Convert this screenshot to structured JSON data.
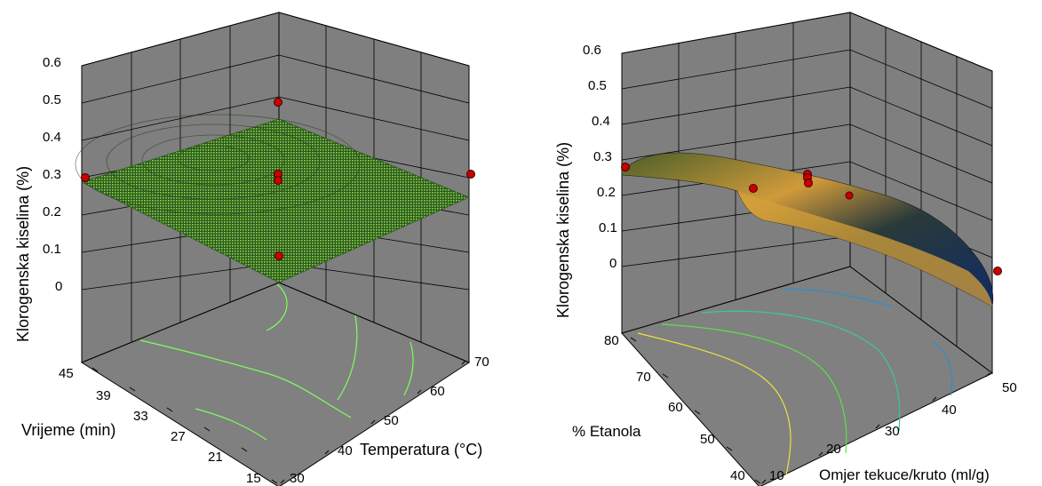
{
  "chart_data": [
    {
      "type": "surface",
      "zlabel": "Klorogenska kiselina (%)",
      "xlabel": "Temperatura (°C)",
      "ylabel": "Vrijeme (min)",
      "z_ticks": [
        "0.6",
        "0.5",
        "0.4",
        "0.3",
        "0.2",
        "0.1",
        "0"
      ],
      "x_ticks": [
        "30",
        "40",
        "50",
        "60",
        "70"
      ],
      "y_ticks": [
        "15",
        "21",
        "27",
        "33",
        "39",
        "45"
      ],
      "zlim": [
        0,
        0.6
      ],
      "xlim": [
        30,
        70
      ],
      "ylim": [
        15,
        45
      ],
      "surface_color": "#7fc341",
      "wall_color": "#7f7f7f",
      "floor_color": "#808080",
      "point_color": "#cc0000",
      "points": [
        {
          "x": 50,
          "y": 30,
          "z": 0.5
        },
        {
          "x": 50,
          "y": 30,
          "z": 0.31
        },
        {
          "x": 50,
          "y": 30,
          "z": 0.29
        },
        {
          "x": 30,
          "y": 45,
          "z": 0.28
        },
        {
          "x": 70,
          "y": 15,
          "z": 0.29
        },
        {
          "x": 50,
          "y": 30,
          "z": 0.08
        }
      ]
    },
    {
      "type": "surface",
      "zlabel": "Klorogenska kiselina (%)",
      "xlabel": "Omjer tekuce/kruto (ml/g)",
      "ylabel": "% Etanola",
      "z_ticks": [
        "0.6",
        "0.5",
        "0.4",
        "0.3",
        "0.2",
        "0.1",
        "0"
      ],
      "x_ticks": [
        "10",
        "20",
        "30",
        "40",
        "50"
      ],
      "y_ticks": [
        "40",
        "50",
        "60",
        "70",
        "80"
      ],
      "zlim": [
        0,
        0.6
      ],
      "xlim": [
        10,
        50
      ],
      "ylim": [
        40,
        80
      ],
      "surface_color_high": "#e8a33a",
      "surface_color_low": "#1d2f5c",
      "wall_color": "#7f7f7f",
      "floor_color": "#808080",
      "point_color": "#cc0000",
      "points": [
        {
          "x": 10,
          "y": 80,
          "z": 0.27
        },
        {
          "x": 30,
          "y": 60,
          "z": 0.22
        },
        {
          "x": 30,
          "y": 60,
          "z": 0.21
        },
        {
          "x": 30,
          "y": 60,
          "z": 0.2
        },
        {
          "x": 20,
          "y": 60,
          "z": 0.19
        },
        {
          "x": 50,
          "y": 40,
          "z": -0.02
        }
      ]
    }
  ]
}
